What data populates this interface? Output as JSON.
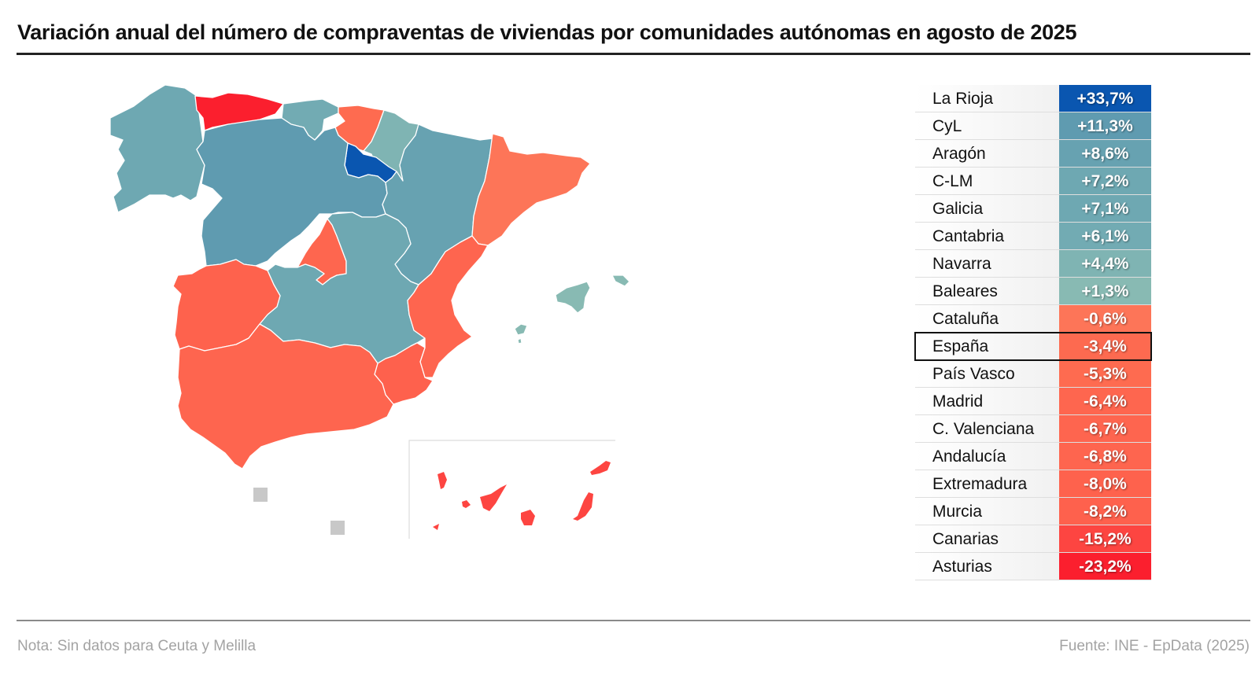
{
  "title": "Variación anual del número de compraventas de viviendas por comunidades autónomas en agosto de 2025",
  "footer": {
    "note": "Nota: Sin datos para Ceuta y Melilla",
    "source": "Fuente: INE - EpData (2025)"
  },
  "colors": {
    "la_rioja": "#0a56b0",
    "cyl": "#5f9bb0",
    "aragon": "#67a2b1",
    "clm": "#6ea8b2",
    "galicia": "#6ea8b2",
    "cantabria": "#72abb3",
    "navarra": "#7fb4b3",
    "baleares": "#88bab3",
    "cataluna": "#fd7558",
    "espana": "#fd6a50",
    "pais_vasco": "#fe6b50",
    "madrid": "#fe664f",
    "c_valenciana": "#fe654f",
    "andalucia": "#fe654f",
    "extremadura": "#fe624d",
    "murcia": "#fe614d",
    "canarias": "#fd4541",
    "asturias": "#fb1f2e",
    "no_data": "#c8c8c8"
  },
  "table": {
    "rows": [
      {
        "name": "La Rioja",
        "value": "+33,7%",
        "color": "#0a56b0"
      },
      {
        "name": "CyL",
        "value": "+11,3%",
        "color": "#5f9bb0"
      },
      {
        "name": "Aragón",
        "value": "+8,6%",
        "color": "#67a2b1"
      },
      {
        "name": "C-LM",
        "value": "+7,2%",
        "color": "#6ea8b2"
      },
      {
        "name": "Galicia",
        "value": "+7,1%",
        "color": "#6ea8b2"
      },
      {
        "name": "Cantabria",
        "value": "+6,1%",
        "color": "#72abb3"
      },
      {
        "name": "Navarra",
        "value": "+4,4%",
        "color": "#7fb4b3"
      },
      {
        "name": "Baleares",
        "value": "+1,3%",
        "color": "#88bab3"
      },
      {
        "name": "Cataluña",
        "value": "-0,6%",
        "color": "#fd7558"
      },
      {
        "name": "España",
        "value": "-3,4%",
        "color": "#fd6a50",
        "highlight": true
      },
      {
        "name": "País Vasco",
        "value": "-5,3%",
        "color": "#fe6b50"
      },
      {
        "name": "Madrid",
        "value": "-6,4%",
        "color": "#fe664f"
      },
      {
        "name": "C. Valenciana",
        "value": "-6,7%",
        "color": "#fe654f"
      },
      {
        "name": "Andalucía",
        "value": "-6,8%",
        "color": "#fe654f"
      },
      {
        "name": "Extremadura",
        "value": "-8,0%",
        "color": "#fe624d"
      },
      {
        "name": "Murcia",
        "value": "-8,2%",
        "color": "#fe614d"
      },
      {
        "name": "Canarias",
        "value": "-15,2%",
        "color": "#fd4541"
      },
      {
        "name": "Asturias",
        "value": "-23,2%",
        "color": "#fb1f2e"
      }
    ]
  },
  "chart_data": {
    "type": "table",
    "title": "Variación anual del número de compraventas de viviendas por comunidades autónomas en agosto de 2025",
    "categories": [
      "La Rioja",
      "CyL",
      "Aragón",
      "C-LM",
      "Galicia",
      "Cantabria",
      "Navarra",
      "Baleares",
      "Cataluña",
      "España",
      "País Vasco",
      "Madrid",
      "C. Valenciana",
      "Andalucía",
      "Extremadura",
      "Murcia",
      "Canarias",
      "Asturias"
    ],
    "values": [
      33.7,
      11.3,
      8.6,
      7.2,
      7.1,
      6.1,
      4.4,
      1.3,
      -0.6,
      -3.4,
      -5.3,
      -6.4,
      -6.7,
      -6.8,
      -8.0,
      -8.2,
      -15.2,
      -23.2
    ],
    "unit": "%",
    "highlight": "España",
    "map": "choropleth of Spain by autonomous community; Ceuta and Melilla shown grey (no data)"
  }
}
